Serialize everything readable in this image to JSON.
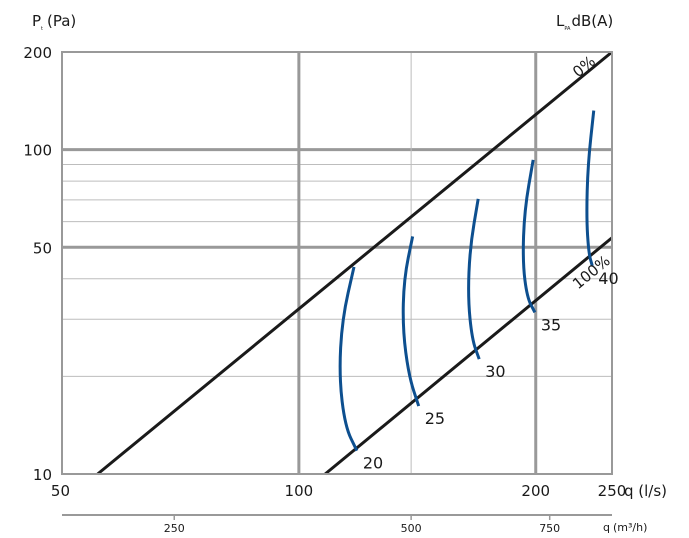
{
  "chart_data": {
    "type": "line",
    "y_axis_label": {
      "main": "P",
      "sub": "t",
      "unit": "(Pa)"
    },
    "right_label": {
      "main": "L",
      "sub": "PA",
      "unit": "dB(A)"
    },
    "x_axis_label": "q (l/s)",
    "secondary_x_axis_label": {
      "main": "q",
      "unit": "(m³/h)"
    },
    "xscale": "log",
    "yscale": "log",
    "xlim": [
      50,
      250
    ],
    "ylim": [
      10,
      200
    ],
    "x_ticks": [
      50,
      100,
      200,
      250
    ],
    "x_ticks_text": [
      "50",
      "100",
      "200",
      "250"
    ],
    "y_ticks": [
      10,
      50,
      100,
      200
    ],
    "y_ticks_text": [
      "10",
      "50",
      "100",
      "200"
    ],
    "secondary_x_ticks": [
      250,
      500,
      750
    ],
    "secondary_x_ticks_text": [
      "250",
      "500",
      "750"
    ],
    "grid": true,
    "series": [
      {
        "name": "0%",
        "style": "damper",
        "x": [
          55.5,
          250
        ],
        "y": [
          10,
          200
        ]
      },
      {
        "name": "100%",
        "style": "damper",
        "x": [
          108,
          250
        ],
        "y": [
          10,
          53.5
        ]
      }
    ],
    "noise_curves": [
      {
        "label": "20",
        "x": [
          117.5,
          113.5,
          112.5,
          114.5,
          118.5
        ],
        "y": [
          43.5,
          30,
          20,
          14,
          11.8
        ]
      },
      {
        "label": "25",
        "x": [
          139.5,
          136,
          135.5,
          138,
          142
        ],
        "y": [
          54,
          40,
          28,
          20,
          16.2
        ]
      },
      {
        "label": "30",
        "x": [
          169,
          165,
          164,
          166,
          169.5
        ],
        "y": [
          70.5,
          50,
          35,
          26,
          22.6
        ]
      },
      {
        "label": "35",
        "x": [
          198.5,
          193.5,
          192.5,
          195,
          199.5
        ],
        "y": [
          93,
          65,
          45,
          35,
          31.5
        ]
      },
      {
        "label": "40",
        "x": [
          237,
          233,
          232,
          233.5,
          236
        ],
        "y": [
          132,
          90,
          62,
          48,
          43.8
        ]
      }
    ],
    "colors": {
      "damper_line": "#1a1a1a",
      "noise_curve": "#0d4f8f",
      "grid_major": "#999999",
      "grid_minor": "#bdbdbd"
    }
  }
}
